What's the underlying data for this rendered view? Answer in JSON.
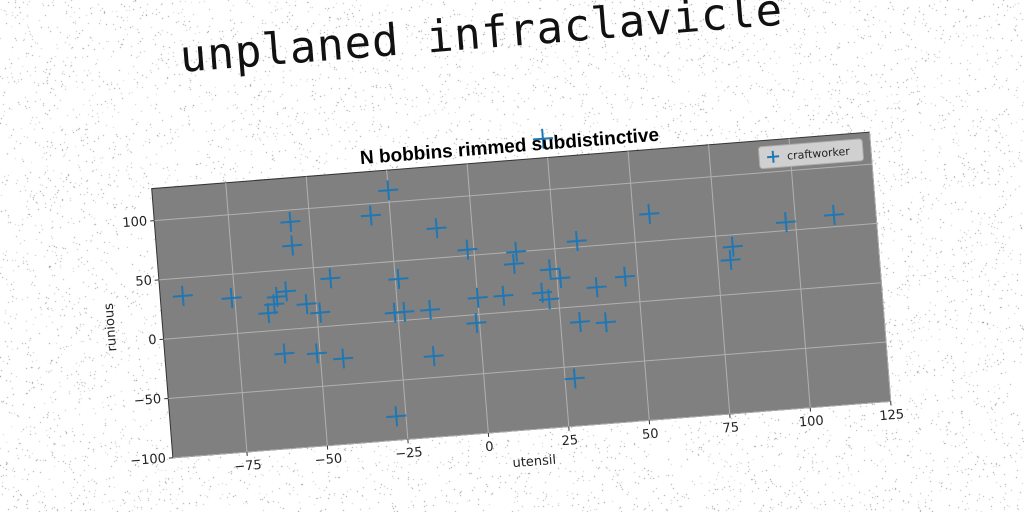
{
  "suptitle": "unplaned infraclavicle",
  "chart_data": {
    "type": "scatter",
    "title": "N bobbins rimmed subdistinctive",
    "xlabel": "utensil",
    "ylabel": "runious",
    "xlim": [
      -98,
      125
    ],
    "ylim": [
      -100,
      127
    ],
    "xticks": [
      -75,
      -50,
      -25,
      0,
      25,
      50,
      75,
      100,
      125
    ],
    "yticks": [
      -100,
      -50,
      0,
      50,
      100
    ],
    "grid": true,
    "legend_position": "top-right",
    "marker": "plus",
    "color": "#1f77b4",
    "background": "#808080",
    "series": [
      {
        "name": "craftworker",
        "points": [
          [
            -91,
            35
          ],
          [
            -76,
            30
          ],
          [
            -65,
            15
          ],
          [
            -63,
            22
          ],
          [
            -62,
            28
          ],
          [
            -61,
            -20
          ],
          [
            -59,
            32
          ],
          [
            -56,
            90
          ],
          [
            -56,
            70
          ],
          [
            -53,
            20
          ],
          [
            -51,
            -22
          ],
          [
            -49,
            12
          ],
          [
            -45,
            40
          ],
          [
            -43,
            -28
          ],
          [
            -31,
            90
          ],
          [
            -28,
            -80
          ],
          [
            -26,
            7
          ],
          [
            -25,
            110
          ],
          [
            -24,
            35
          ],
          [
            -23,
            7
          ],
          [
            -15,
            7
          ],
          [
            -15,
            -32
          ],
          [
            -11,
            75
          ],
          [
            -2,
            55
          ],
          [
            -1,
            -7
          ],
          [
            0,
            14
          ],
          [
            8,
            14
          ],
          [
            12,
            40
          ],
          [
            13,
            50
          ],
          [
            20,
            14
          ],
          [
            22,
            8
          ],
          [
            23,
            33
          ],
          [
            24,
            143
          ],
          [
            26,
            25
          ],
          [
            28,
            -60
          ],
          [
            31,
            -13
          ],
          [
            32,
            55
          ],
          [
            37,
            15
          ],
          [
            39,
            -15
          ],
          [
            46,
            22
          ],
          [
            55,
            73
          ],
          [
            79,
            29
          ],
          [
            80,
            40
          ],
          [
            97,
            57
          ],
          [
            112,
            60
          ]
        ]
      }
    ]
  }
}
